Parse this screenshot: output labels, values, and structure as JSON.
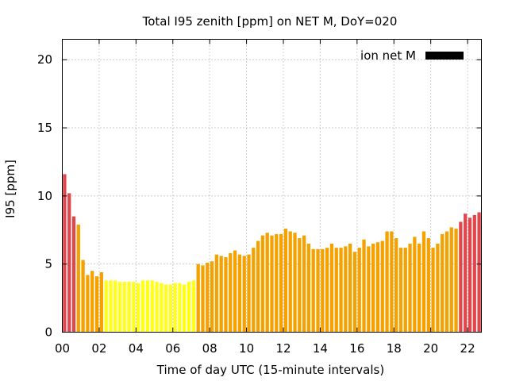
{
  "chart_data": {
    "type": "bar",
    "title": "Total I95 zenith [ppm] on NET M, DoY=020",
    "xlabel": "Time of day UTC (15-minute intervals)",
    "ylabel": "I95 [ppm]",
    "xlim": [
      0,
      22.75
    ],
    "ylim": [
      0,
      21.5
    ],
    "x_ticks": [
      {
        "value": 0,
        "label": "00"
      },
      {
        "value": 2,
        "label": "02"
      },
      {
        "value": 4,
        "label": "04"
      },
      {
        "value": 6,
        "label": "06"
      },
      {
        "value": 8,
        "label": "08"
      },
      {
        "value": 10,
        "label": "10"
      },
      {
        "value": 12,
        "label": "12"
      },
      {
        "value": 14,
        "label": "14"
      },
      {
        "value": 16,
        "label": "16"
      },
      {
        "value": 18,
        "label": "18"
      },
      {
        "value": 20,
        "label": "20"
      },
      {
        "value": 22,
        "label": "22"
      }
    ],
    "y_ticks": [
      {
        "value": 0,
        "label": "0"
      },
      {
        "value": 5,
        "label": "5"
      },
      {
        "value": 10,
        "label": "10"
      },
      {
        "value": 15,
        "label": "15"
      },
      {
        "value": 20,
        "label": "20"
      }
    ],
    "grid": true,
    "legend": {
      "label": "ion net M",
      "color": "#000000",
      "position": "top-right"
    },
    "interval_hours": 0.25,
    "colors": {
      "red": "#e0474c",
      "orange": "#f5a100",
      "yellow": "#ffff1a"
    },
    "values": [
      11.6,
      10.2,
      8.5,
      7.9,
      5.3,
      4.2,
      4.5,
      4.1,
      4.4,
      3.8,
      3.8,
      3.8,
      3.7,
      3.7,
      3.7,
      3.7,
      3.6,
      3.8,
      3.8,
      3.8,
      3.7,
      3.6,
      3.5,
      3.5,
      3.6,
      3.6,
      3.5,
      3.7,
      3.8,
      5.0,
      4.9,
      5.1,
      5.2,
      5.7,
      5.6,
      5.5,
      5.8,
      6.0,
      5.7,
      5.6,
      5.7,
      6.2,
      6.7,
      7.1,
      7.3,
      7.1,
      7.2,
      7.2,
      7.6,
      7.4,
      7.3,
      6.9,
      7.1,
      6.5,
      6.1,
      6.1,
      6.1,
      6.2,
      6.5,
      6.2,
      6.2,
      6.3,
      6.5,
      5.9,
      6.2,
      6.8,
      6.3,
      6.5,
      6.6,
      6.7,
      7.4,
      7.4,
      6.9,
      6.2,
      6.2,
      6.5,
      7.0,
      6.5,
      7.4,
      6.9,
      6.2,
      6.5,
      7.2,
      7.4,
      7.7,
      7.6,
      8.1,
      8.7,
      8.4,
      8.6,
      8.8
    ],
    "color_classes": [
      "red",
      "red",
      "red",
      "orange",
      "orange",
      "orange",
      "orange",
      "orange",
      "orange",
      "yellow",
      "yellow",
      "yellow",
      "yellow",
      "yellow",
      "yellow",
      "yellow",
      "yellow",
      "yellow",
      "yellow",
      "yellow",
      "yellow",
      "yellow",
      "yellow",
      "yellow",
      "yellow",
      "yellow",
      "yellow",
      "yellow",
      "yellow",
      "orange",
      "orange",
      "orange",
      "orange",
      "orange",
      "orange",
      "orange",
      "orange",
      "orange",
      "orange",
      "orange",
      "orange",
      "orange",
      "orange",
      "orange",
      "orange",
      "orange",
      "orange",
      "orange",
      "orange",
      "orange",
      "orange",
      "orange",
      "orange",
      "orange",
      "orange",
      "orange",
      "orange",
      "orange",
      "orange",
      "orange",
      "orange",
      "orange",
      "orange",
      "orange",
      "orange",
      "orange",
      "orange",
      "orange",
      "orange",
      "orange",
      "orange",
      "orange",
      "orange",
      "orange",
      "orange",
      "orange",
      "orange",
      "orange",
      "orange",
      "orange",
      "orange",
      "orange",
      "orange",
      "orange",
      "orange",
      "orange",
      "red",
      "red",
      "red",
      "red",
      "red"
    ]
  }
}
